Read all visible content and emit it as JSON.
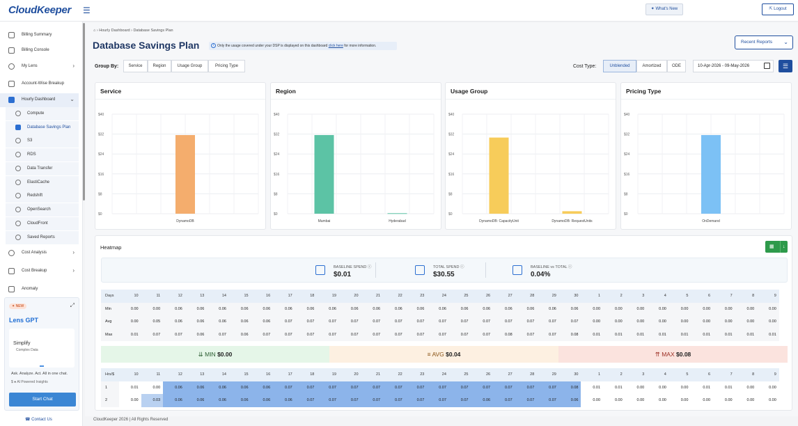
{
  "app": {
    "logo": "CloudKeeper",
    "whats_new": "What's New",
    "logout": "Logout"
  },
  "sidebar": {
    "items": [
      {
        "label": "Billing Summary"
      },
      {
        "label": "Billing Console"
      },
      {
        "label": "My Lens"
      },
      {
        "label": "Account-Wise Breakup"
      },
      {
        "label": "Hourly Dashboard"
      },
      {
        "label": "Cost Analysis"
      },
      {
        "label": "Cost Breakup"
      },
      {
        "label": "Anomaly"
      }
    ],
    "sub_items": [
      {
        "label": "Compute"
      },
      {
        "label": "Database Savings Plan"
      },
      {
        "label": "S3"
      },
      {
        "label": "RDS"
      },
      {
        "label": "Data Transfer"
      },
      {
        "label": "ElastiCache"
      },
      {
        "label": "Redshift"
      },
      {
        "label": "OpenSearch"
      },
      {
        "label": "CloudFront"
      },
      {
        "label": "Saved Reports"
      }
    ],
    "lens": {
      "badge": "NEW",
      "title": "Lens GPT",
      "card_title": "Simplify",
      "card_sub": "Complex Data",
      "tagline": "Ask. Analyze. Act. All in one chat.",
      "sub": "AI Powered Insights",
      "button": "Start Chat"
    },
    "contact": "Contact Us"
  },
  "main": {
    "breadcrumb": {
      "first": "Hourly Dashboard",
      "second": "Database Savings Plan"
    },
    "title": "Database Savings Plan",
    "info": {
      "before": "Only the usage covered under your DSP is displayed on this dashboard ",
      "link": "click here",
      "after": " for more information."
    },
    "recent_reports": "Recent Reports",
    "group_by": {
      "label": "Group By:",
      "options": [
        "Service",
        "Region",
        "Usage Group",
        "Pricing Type"
      ]
    },
    "cost_type": {
      "label": "Cost Type:",
      "options": [
        "Unblended",
        "Amortized",
        "ODE"
      ],
      "selected": "Unblended"
    },
    "date_range": "10-Apr-2026 - 09-May-2026"
  },
  "chart_data": [
    {
      "type": "bar",
      "title": "Service",
      "categories": [
        "DynamoDB"
      ],
      "values": [
        31.6
      ],
      "ylim": [
        0,
        40
      ],
      "yticks": [
        "$0",
        "$8",
        "$16",
        "$24",
        "$32",
        "$40"
      ],
      "color": "#f4ad6d"
    },
    {
      "type": "bar",
      "title": "Region",
      "categories": [
        "Mumbai",
        "Hyderabad"
      ],
      "values": [
        31.6,
        0.2
      ],
      "ylim": [
        0,
        40
      ],
      "yticks": [
        "$0",
        "$8",
        "$16",
        "$24",
        "$32",
        "$40"
      ],
      "color": "#5cc3a5"
    },
    {
      "type": "bar",
      "title": "Usage Group",
      "categories": [
        "DynamoDB: CapacityUnit",
        "DynamoDB: RequestUnits"
      ],
      "values": [
        30.6,
        1.0
      ],
      "ylim": [
        0,
        40
      ],
      "yticks": [
        "$0",
        "$8",
        "$16",
        "$24",
        "$32",
        "$40"
      ],
      "color": "#f7cc5a"
    },
    {
      "type": "bar",
      "title": "Pricing Type",
      "categories": [
        "OnDemand"
      ],
      "values": [
        31.6
      ],
      "ylim": [
        0,
        40
      ],
      "yticks": [
        "$0",
        "$8",
        "$16",
        "$24",
        "$32",
        "$40"
      ],
      "color": "#7cc1f5"
    }
  ],
  "heatmap": {
    "title": "Heatmap",
    "summary": [
      {
        "label": "BASELINE SPEND",
        "value": "$0.01"
      },
      {
        "label": "TOTAL SPEND",
        "value": "$30.55"
      },
      {
        "label": "BASELINE vs TOTAL",
        "value": "0.04%"
      }
    ],
    "days_header": "Days",
    "days": [
      "10",
      "11",
      "12",
      "13",
      "14",
      "15",
      "16",
      "17",
      "18",
      "19",
      "20",
      "21",
      "22",
      "23",
      "24",
      "25",
      "26",
      "27",
      "28",
      "29",
      "30",
      "1",
      "2",
      "3",
      "4",
      "5",
      "6",
      "7",
      "8",
      "9"
    ],
    "stats": [
      {
        "label": "Min",
        "values": [
          "0.00",
          "0.00",
          "0.06",
          "0.06",
          "0.06",
          "0.06",
          "0.06",
          "0.06",
          "0.06",
          "0.06",
          "0.06",
          "0.06",
          "0.06",
          "0.06",
          "0.06",
          "0.06",
          "0.06",
          "0.06",
          "0.06",
          "0.06",
          "0.06",
          "0.00",
          "0.00",
          "0.00",
          "0.00",
          "0.00",
          "0.00",
          "0.00",
          "0.00",
          "0.00"
        ]
      },
      {
        "label": "Avg",
        "values": [
          "0.00",
          "0.05",
          "0.06",
          "0.06",
          "0.06",
          "0.06",
          "0.06",
          "0.07",
          "0.07",
          "0.07",
          "0.07",
          "0.07",
          "0.07",
          "0.07",
          "0.07",
          "0.07",
          "0.07",
          "0.07",
          "0.07",
          "0.07",
          "0.07",
          "0.00",
          "0.00",
          "0.00",
          "0.00",
          "0.00",
          "0.00",
          "0.00",
          "0.00",
          "0.00"
        ]
      },
      {
        "label": "Max",
        "values": [
          "0.01",
          "0.07",
          "0.07",
          "0.06",
          "0.07",
          "0.06",
          "0.07",
          "0.07",
          "0.07",
          "0.07",
          "0.07",
          "0.07",
          "0.07",
          "0.07",
          "0.07",
          "0.07",
          "0.07",
          "0.08",
          "0.07",
          "0.07",
          "0.08",
          "0.01",
          "0.01",
          "0.01",
          "0.01",
          "0.01",
          "0.01",
          "0.01",
          "0.01",
          "0.01"
        ]
      }
    ],
    "legend": {
      "min_label": "MIN",
      "min_value": "$0.00",
      "avg_label": "AVG",
      "avg_value": "$0.04",
      "max_label": "MAX",
      "max_value": "$0.08"
    },
    "hours_header": "Hrs/$",
    "hours": [
      {
        "label": "1",
        "values": [
          "0.01",
          "0.00",
          "0.06",
          "0.06",
          "0.06",
          "0.06",
          "0.06",
          "0.07",
          "0.07",
          "0.07",
          "0.07",
          "0.07",
          "0.07",
          "0.07",
          "0.07",
          "0.07",
          "0.07",
          "0.07",
          "0.07",
          "0.07",
          "0.08",
          "0.01",
          "0.01",
          "0.00",
          "0.00",
          "0.00",
          "0.01",
          "0.01",
          "0.00",
          "0.00"
        ]
      },
      {
        "label": "2",
        "values": [
          "0.00",
          "0.03",
          "0.06",
          "0.06",
          "0.06",
          "0.06",
          "0.06",
          "0.06",
          "0.07",
          "0.07",
          "0.07",
          "0.07",
          "0.07",
          "0.07",
          "0.07",
          "0.07",
          "0.06",
          "0.07",
          "0.07",
          "0.07",
          "0.06",
          "0.00",
          "0.00",
          "0.00",
          "0.00",
          "0.00",
          "0.00",
          "0.00",
          "0.00",
          "0.00"
        ]
      }
    ]
  },
  "footer": "CloudKeeper 2026 | All Rights Reserved"
}
